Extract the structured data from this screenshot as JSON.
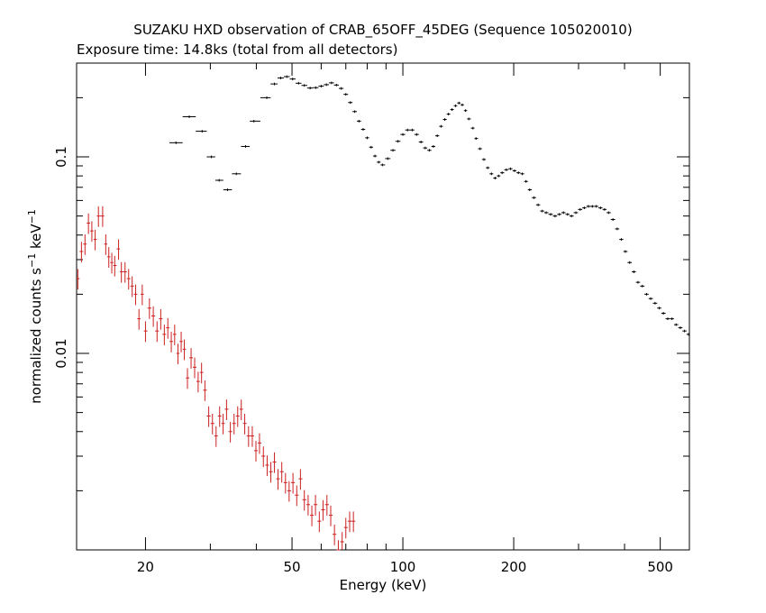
{
  "chart_data": {
    "type": "scatter",
    "title": "SUZAKU HXD observation of CRAB_65OFF_45DEG (Sequence 105020010)",
    "subtitle": "Exposure time: 14.8ks (total from all detectors)",
    "xlabel": "Energy (keV)",
    "ylabel_main": "normalized counts s",
    "ylabel_sup1": "−1",
    "ylabel_mid": " keV",
    "ylabel_sup2": "−1",
    "x_scale": "log",
    "y_scale": "log",
    "xlim": [
      13,
      600
    ],
    "ylim": [
      0.001,
      0.3
    ],
    "x_ticks_major": [
      20,
      50,
      100,
      200,
      500
    ],
    "x_tick_labels": [
      "20",
      "50",
      "100",
      "200",
      "500"
    ],
    "y_ticks_major": [
      0.01,
      0.1
    ],
    "y_tick_labels": [
      "0.01",
      "0.1"
    ],
    "grid": false,
    "colors": {
      "frame": "#000000",
      "pin": "#cc1f1f",
      "gso": "#000000"
    },
    "series": [
      {
        "color": "#cc1f1f",
        "points": [
          [
            13.1,
            0.024
          ],
          [
            13.4,
            0.033
          ],
          [
            13.7,
            0.036
          ],
          [
            14.0,
            0.046
          ],
          [
            14.3,
            0.042
          ],
          [
            14.6,
            0.038
          ],
          [
            14.9,
            0.05
          ],
          [
            15.3,
            0.05
          ],
          [
            15.6,
            0.036
          ],
          [
            15.9,
            0.031
          ],
          [
            16.2,
            0.029
          ],
          [
            16.5,
            0.028
          ],
          [
            16.9,
            0.034
          ],
          [
            17.2,
            0.026
          ],
          [
            17.6,
            0.026
          ],
          [
            18.0,
            0.024
          ],
          [
            18.4,
            0.022
          ],
          [
            18.8,
            0.02
          ],
          [
            19.2,
            0.015
          ],
          [
            19.6,
            0.02
          ],
          [
            20.0,
            0.013
          ],
          [
            20.5,
            0.017
          ],
          [
            21.0,
            0.0155
          ],
          [
            21.5,
            0.013
          ],
          [
            22.0,
            0.015
          ],
          [
            22.5,
            0.0125
          ],
          [
            23.0,
            0.0135
          ],
          [
            23.5,
            0.0115
          ],
          [
            24.0,
            0.0125
          ],
          [
            24.5,
            0.01
          ],
          [
            25.0,
            0.0115
          ],
          [
            25.5,
            0.0105
          ],
          [
            26.0,
            0.0075
          ],
          [
            26.6,
            0.0095
          ],
          [
            27.2,
            0.0085
          ],
          [
            27.8,
            0.0072
          ],
          [
            28.4,
            0.008
          ],
          [
            29.0,
            0.0065
          ],
          [
            29.7,
            0.0048
          ],
          [
            30.4,
            0.0044
          ],
          [
            31.1,
            0.0038
          ],
          [
            31.8,
            0.0048
          ],
          [
            32.5,
            0.0044
          ],
          [
            33.2,
            0.0052
          ],
          [
            34.0,
            0.004
          ],
          [
            34.8,
            0.0044
          ],
          [
            35.6,
            0.0048
          ],
          [
            36.4,
            0.0052
          ],
          [
            37.2,
            0.0044
          ],
          [
            38.1,
            0.0038
          ],
          [
            39.0,
            0.0038
          ],
          [
            39.9,
            0.0032
          ],
          [
            40.8,
            0.0035
          ],
          [
            41.8,
            0.003
          ],
          [
            42.8,
            0.0027
          ],
          [
            43.8,
            0.0025
          ],
          [
            44.8,
            0.0028
          ],
          [
            45.8,
            0.0023
          ],
          [
            46.9,
            0.0025
          ],
          [
            48.0,
            0.0022
          ],
          [
            49.1,
            0.002
          ],
          [
            50.3,
            0.0022
          ],
          [
            51.5,
            0.0019
          ],
          [
            52.7,
            0.0023
          ],
          [
            54.0,
            0.0018
          ],
          [
            55.3,
            0.0017
          ],
          [
            56.6,
            0.0015
          ],
          [
            57.9,
            0.0017
          ],
          [
            59.3,
            0.0014
          ],
          [
            60.7,
            0.0016
          ],
          [
            62.2,
            0.0017
          ],
          [
            63.7,
            0.0015
          ],
          [
            65.2,
            0.0012
          ],
          [
            66.8,
            0.001
          ],
          [
            68.4,
            0.0011
          ],
          [
            70.0,
            0.0013
          ],
          [
            71.7,
            0.0014
          ],
          [
            73.4,
            0.0014
          ]
        ]
      },
      {
        "color": "#000000",
        "points": [
          [
            24.2,
            0.118
          ],
          [
            26.3,
            0.16
          ],
          [
            28.5,
            0.135
          ],
          [
            30.2,
            0.1
          ],
          [
            31.7,
            0.076
          ],
          [
            33.4,
            0.068
          ],
          [
            35.3,
            0.082
          ],
          [
            37.4,
            0.113
          ],
          [
            39.4,
            0.152
          ],
          [
            42.7,
            0.2
          ],
          [
            44.8,
            0.235
          ],
          [
            46.6,
            0.252
          ],
          [
            48.4,
            0.256
          ],
          [
            50.2,
            0.249
          ],
          [
            52.1,
            0.237
          ],
          [
            54.0,
            0.231
          ],
          [
            56.0,
            0.224
          ],
          [
            58.0,
            0.225
          ],
          [
            60.0,
            0.229
          ],
          [
            62.0,
            0.233
          ],
          [
            64.0,
            0.238
          ],
          [
            66.0,
            0.232
          ],
          [
            68.0,
            0.223
          ],
          [
            70.0,
            0.208
          ],
          [
            72.0,
            0.189
          ],
          [
            74.0,
            0.17
          ],
          [
            76.0,
            0.152
          ],
          [
            78.0,
            0.138
          ],
          [
            80.0,
            0.125
          ],
          [
            82.0,
            0.112
          ],
          [
            84.0,
            0.101
          ],
          [
            86.0,
            0.094
          ],
          [
            88.0,
            0.091
          ],
          [
            91.0,
            0.098
          ],
          [
            94.0,
            0.108
          ],
          [
            97.0,
            0.12
          ],
          [
            100.0,
            0.13
          ],
          [
            103.0,
            0.137
          ],
          [
            106.0,
            0.137
          ],
          [
            109.0,
            0.13
          ],
          [
            112.0,
            0.119
          ],
          [
            115.0,
            0.111
          ],
          [
            118.0,
            0.108
          ],
          [
            121.0,
            0.113
          ],
          [
            124.0,
            0.128
          ],
          [
            127.0,
            0.143
          ],
          [
            130.0,
            0.155
          ],
          [
            133.0,
            0.165
          ],
          [
            136.0,
            0.174
          ],
          [
            139.0,
            0.182
          ],
          [
            142.0,
            0.188
          ],
          [
            145.0,
            0.184
          ],
          [
            148.0,
            0.172
          ],
          [
            151.0,
            0.156
          ],
          [
            155.0,
            0.14
          ],
          [
            158.0,
            0.124
          ],
          [
            162.0,
            0.11
          ],
          [
            166.0,
            0.097
          ],
          [
            170.0,
            0.088
          ],
          [
            174.0,
            0.082
          ],
          [
            178.0,
            0.078
          ],
          [
            182.0,
            0.08
          ],
          [
            186.0,
            0.083
          ],
          [
            191.0,
            0.086
          ],
          [
            196.0,
            0.087
          ],
          [
            201.0,
            0.085
          ],
          [
            206.0,
            0.083
          ],
          [
            211.0,
            0.082
          ],
          [
            216.0,
            0.075
          ],
          [
            221.0,
            0.068
          ],
          [
            227.0,
            0.062
          ],
          [
            233.0,
            0.057
          ],
          [
            239.0,
            0.053
          ],
          [
            245.0,
            0.052
          ],
          [
            252.0,
            0.051
          ],
          [
            259.0,
            0.05
          ],
          [
            266.0,
            0.051
          ],
          [
            273.0,
            0.052
          ],
          [
            280.0,
            0.051
          ],
          [
            287.0,
            0.05
          ],
          [
            295.0,
            0.052
          ],
          [
            303.0,
            0.054
          ],
          [
            311.0,
            0.055
          ],
          [
            319.0,
            0.056
          ],
          [
            327.0,
            0.056
          ],
          [
            335.0,
            0.056
          ],
          [
            344.0,
            0.055
          ],
          [
            353.0,
            0.054
          ],
          [
            362.0,
            0.052
          ],
          [
            372.0,
            0.048
          ],
          [
            382.0,
            0.043
          ],
          [
            392.0,
            0.038
          ],
          [
            402.0,
            0.033
          ],
          [
            413.0,
            0.029
          ],
          [
            424.0,
            0.026
          ],
          [
            435.0,
            0.023
          ],
          [
            447.0,
            0.022
          ],
          [
            459.0,
            0.02
          ],
          [
            471.0,
            0.019
          ],
          [
            484.0,
            0.018
          ],
          [
            497.0,
            0.017
          ],
          [
            510.0,
            0.016
          ],
          [
            524.0,
            0.015
          ],
          [
            538.0,
            0.015
          ],
          [
            552.0,
            0.014
          ],
          [
            567.0,
            0.0135
          ],
          [
            582.0,
            0.013
          ],
          [
            597.0,
            0.0125
          ]
        ]
      }
    ]
  }
}
